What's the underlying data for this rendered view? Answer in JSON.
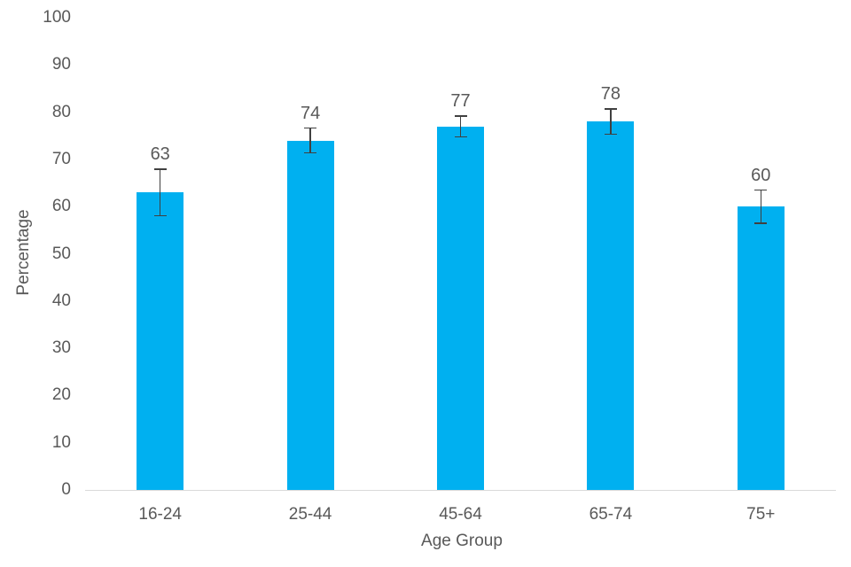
{
  "chart_data": {
    "type": "bar",
    "categories": [
      "16-24",
      "25-44",
      "45-64",
      "65-74",
      "75+"
    ],
    "values": [
      63,
      74,
      77,
      78,
      60
    ],
    "data_labels": [
      "63",
      "74",
      "77",
      "78",
      "60"
    ],
    "errors": [
      4.9,
      2.6,
      2.2,
      2.7,
      3.5
    ],
    "error_bar_style": "symmetric-with-caps",
    "xlabel": "Age Group",
    "ylabel": "Percentage",
    "ylim": [
      0,
      100
    ],
    "yticks": [
      0,
      10,
      20,
      30,
      40,
      50,
      60,
      70,
      80,
      90,
      100
    ],
    "grid": false,
    "legend": "none",
    "title": "",
    "colors": {
      "bar": "#00B0F0",
      "error_bar": "#404040",
      "axis_line": "#D9D9D9",
      "text": "#595959",
      "background": "#FFFFFF"
    }
  }
}
